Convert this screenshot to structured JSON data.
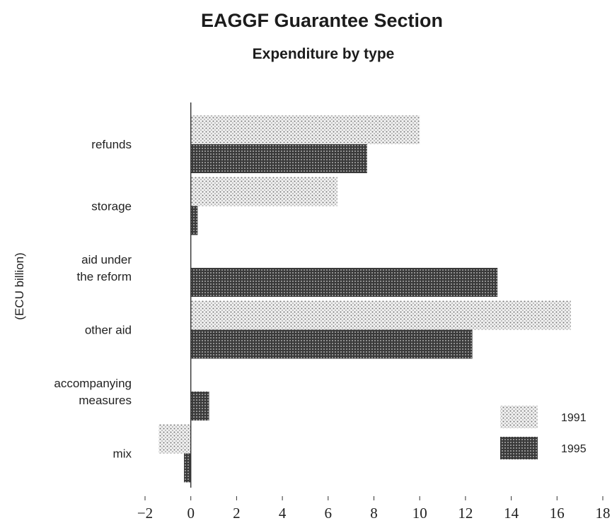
{
  "chart_data": {
    "type": "bar",
    "orientation": "horizontal",
    "title": "EAGGF Guarantee Section",
    "subtitle": "Expenditure by type",
    "ylabel": "(ECU billion)",
    "categories": [
      [
        "refunds"
      ],
      [
        "storage"
      ],
      [
        "aid under",
        "the reform"
      ],
      [
        "other aid"
      ],
      [
        "accompanying",
        "measures"
      ],
      [
        "mix"
      ]
    ],
    "series": [
      {
        "name": "1991",
        "values": [
          10.0,
          6.4,
          0,
          16.6,
          0,
          -1.4
        ],
        "pattern": "light-dots"
      },
      {
        "name": "1995",
        "values": [
          7.7,
          0.3,
          13.4,
          12.3,
          0.8,
          -0.3
        ],
        "pattern": "dark-dots"
      }
    ],
    "xlim": [
      -2,
      18
    ],
    "xticks": [
      -2,
      0,
      2,
      4,
      6,
      8,
      10,
      12,
      14,
      16,
      18
    ],
    "tick_labels": [
      "−2",
      "0",
      "2",
      "4",
      "6",
      "8",
      "10",
      "12",
      "14",
      "16",
      "18"
    ],
    "legend_position": "bottom-right",
    "grid": false
  }
}
